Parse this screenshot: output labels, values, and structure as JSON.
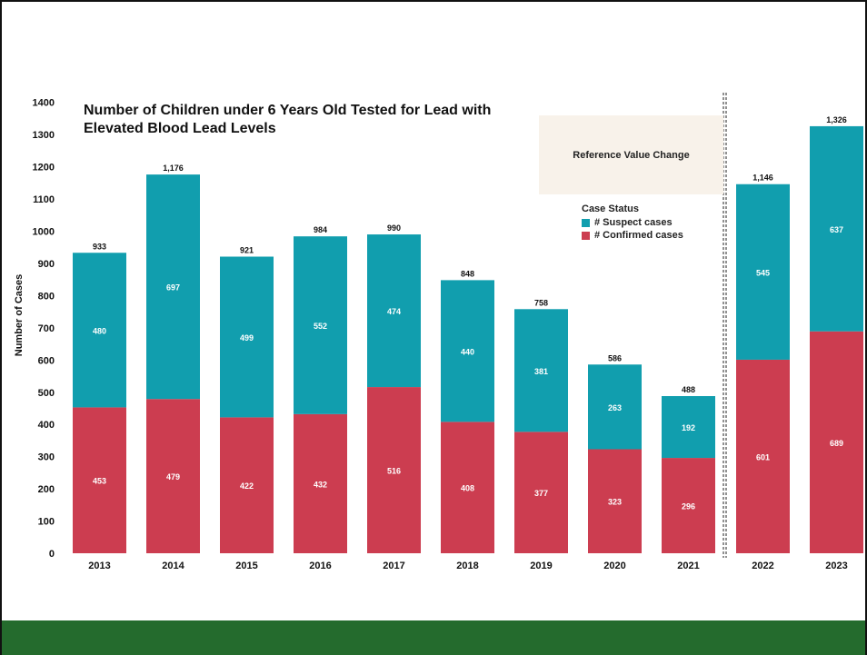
{
  "chart_data": {
    "type": "bar",
    "stacked": true,
    "title": "Number of Children under 6 Years Old Tested for Lead with Elevated Blood Lead Levels",
    "ylabel": "Number of Cases",
    "xlabel": "",
    "ylim": [
      0,
      1400
    ],
    "yticks": [
      "0",
      "100",
      "200",
      "300",
      "400",
      "500",
      "600",
      "700",
      "800",
      "900",
      "1000",
      "1100",
      "1200",
      "1300",
      "1400"
    ],
    "grid": false,
    "categories": [
      "2013",
      "2014",
      "2015",
      "2016",
      "2017",
      "2018",
      "2019",
      "2020",
      "2021",
      "2022",
      "2023"
    ],
    "series": [
      {
        "name": "# Confirmed cases",
        "color": "#cc3d50",
        "values": [
          453,
          479,
          422,
          432,
          516,
          408,
          377,
          323,
          296,
          601,
          689
        ]
      },
      {
        "name": "# Suspect cases",
        "color": "#119eae",
        "values": [
          480,
          697,
          499,
          552,
          474,
          440,
          381,
          263,
          192,
          545,
          637
        ]
      }
    ],
    "totals": [
      "933",
      "1,176",
      "921",
      "984",
      "990",
      "848",
      "758",
      "586",
      "488",
      "1,146",
      "1,326"
    ],
    "legend": {
      "title": "Case Status",
      "placement": "top-right"
    },
    "annotation": "Reference Value Change",
    "divider_after_category": "2021"
  },
  "colors": {
    "footer": "#246b2d",
    "annotation_bg": "#f8f2ea"
  }
}
